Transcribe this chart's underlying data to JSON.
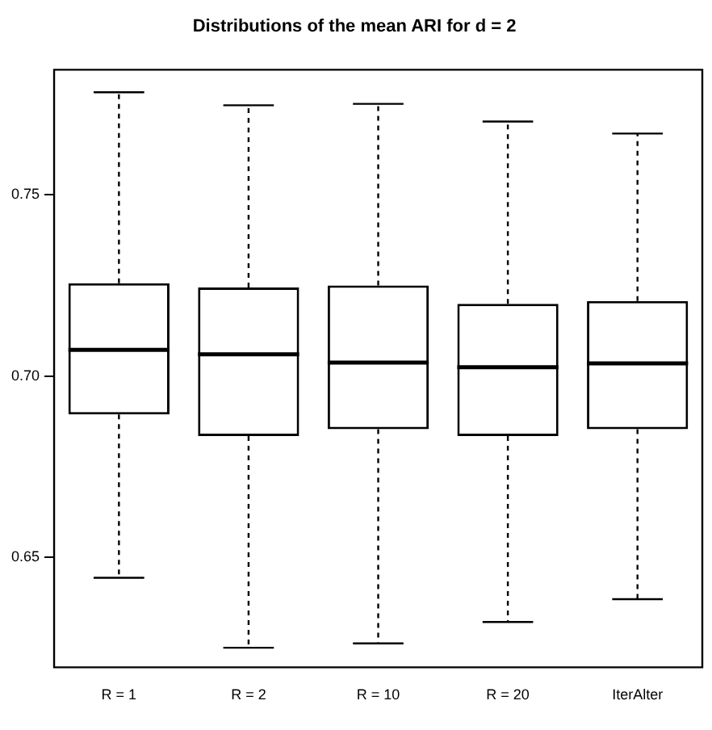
{
  "chart_data": {
    "type": "box",
    "title": "Distributions of the mean ARI for d = 2",
    "categories": [
      "R = 1",
      "R = 2",
      "R = 10",
      "R = 20",
      "IterAlter"
    ],
    "boxes": [
      {
        "low": 0.6443,
        "q1": 0.6894,
        "median": 0.7072,
        "q3": 0.7256,
        "high": 0.7783
      },
      {
        "low": 0.625,
        "q1": 0.6834,
        "median": 0.706,
        "q3": 0.7244,
        "high": 0.7747
      },
      {
        "low": 0.6262,
        "q1": 0.6853,
        "median": 0.7037,
        "q3": 0.725,
        "high": 0.7751
      },
      {
        "low": 0.6321,
        "q1": 0.6834,
        "median": 0.7024,
        "q3": 0.7199,
        "high": 0.7702
      },
      {
        "low": 0.6384,
        "q1": 0.6853,
        "median": 0.7035,
        "q3": 0.7207,
        "high": 0.7669
      }
    ],
    "ylim": [
      0.6196,
      0.7845
    ],
    "yticks": [
      {
        "value": 0.65,
        "label": "0.65"
      },
      {
        "value": 0.7,
        "label": "0.70"
      },
      {
        "value": 0.75,
        "label": "0.75"
      }
    ]
  }
}
